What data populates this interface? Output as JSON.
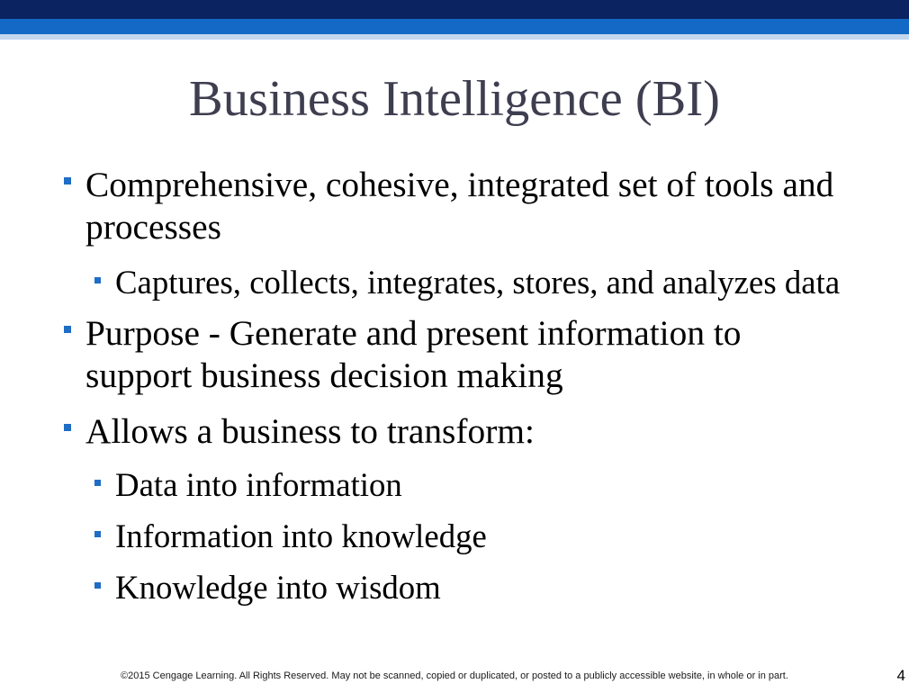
{
  "slide": {
    "title": "Business Intelligence (BI)",
    "bullets": [
      {
        "text": "Comprehensive, cohesive, integrated set of tools and processes",
        "sub": [
          "Captures, collects, integrates, stores, and analyzes data"
        ]
      },
      {
        "text": "Purpose - Generate and present information to support business decision making"
      },
      {
        "text": "Allows a business to transform:",
        "sub": [
          "Data into information",
          "Information into knowledge",
          "Knowledge into wisdom"
        ]
      }
    ]
  },
  "footer": {
    "copyright": "©2015 Cengage Learning. All Rights Reserved. May not be scanned, copied or duplicated, or posted to a publicly accessible website, in whole or in part.",
    "page_number": "4"
  },
  "icons": {
    "bullet": "square-bullet-icon"
  },
  "theme": {
    "header_band_dark": "#0b2461",
    "header_band_blue": "#1469c6",
    "header_band_light": "#c3d7ee",
    "bullet_color": "#1f6dc4",
    "title_color": "#3e3e50",
    "text_color": "#000000",
    "footer_color": "#1a1a1a"
  }
}
